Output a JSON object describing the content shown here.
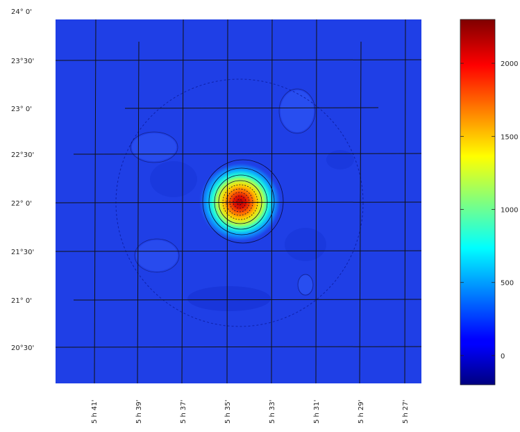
{
  "chart_data": {
    "type": "heatmap",
    "title": "",
    "xlabel": "",
    "ylabel": "",
    "x_ticks": [
      "5 h 41'",
      "5 h 39'",
      "5 h 37'",
      "5 h 35'",
      "5 h 33'",
      "5 h 31'",
      "5 h 29'",
      "5 h 27'"
    ],
    "y_ticks": [
      "24° 0'",
      "23°30'",
      "23° 0'",
      "22°30'",
      "22° 0'",
      "21°30'",
      "21° 0'",
      "20°30'"
    ],
    "colorbar": {
      "ticks": [
        "0",
        "500",
        "1000",
        "1500",
        "2000"
      ],
      "tick_values": [
        0,
        500,
        1000,
        1500,
        2000
      ],
      "range": [
        -200,
        2300
      ]
    },
    "field": {
      "background_value": 40,
      "peak": {
        "ra": "5 h 34.5'",
        "dec": "22° 1'",
        "value": 2250
      },
      "mapped_region": "circular",
      "contours": true
    },
    "grid": true,
    "colormap": "jet",
    "colors": {
      "background": "#1f3fe6",
      "grid": "#111111",
      "contour": "#0a0a3a"
    }
  }
}
